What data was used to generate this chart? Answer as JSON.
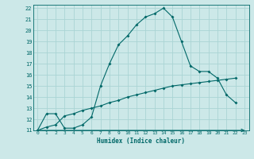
{
  "xlabel": "Humidex (Indice chaleur)",
  "bg_color": "#cce8e8",
  "grid_color": "#aad4d4",
  "line_color": "#006868",
  "xlim": [
    -0.5,
    23.5
  ],
  "ylim": [
    11,
    22.3
  ],
  "xticks": [
    0,
    1,
    2,
    3,
    4,
    5,
    6,
    7,
    8,
    9,
    10,
    11,
    12,
    13,
    14,
    15,
    16,
    17,
    18,
    19,
    20,
    21,
    22,
    23
  ],
  "yticks": [
    11,
    12,
    13,
    14,
    15,
    16,
    17,
    18,
    19,
    20,
    21,
    22
  ],
  "curve1_x": [
    0,
    1,
    2,
    3,
    4,
    5,
    6,
    7,
    8,
    9,
    10,
    11,
    12,
    13,
    14,
    15,
    16,
    17,
    18,
    19,
    20,
    21,
    22
  ],
  "curve1_y": [
    11,
    12.5,
    12.5,
    11.2,
    11.2,
    11.5,
    12.2,
    15.0,
    17.0,
    18.7,
    19.5,
    20.5,
    21.2,
    21.5,
    22.0,
    21.2,
    19.0,
    16.8,
    16.3,
    16.3,
    15.7,
    14.2,
    13.5
  ],
  "curve2_x": [
    0,
    22
  ],
  "curve2_y": [
    11,
    11
  ],
  "curve3_x": [
    0,
    1,
    2,
    3,
    4,
    5,
    6,
    7,
    8,
    9,
    10,
    11,
    12,
    13,
    14,
    15,
    16,
    17,
    18,
    19,
    20,
    21,
    22
  ],
  "curve3_y": [
    11,
    11.3,
    11.5,
    12.3,
    12.5,
    12.8,
    13.0,
    13.2,
    13.5,
    13.7,
    14.0,
    14.2,
    14.4,
    14.6,
    14.8,
    15.0,
    15.1,
    15.2,
    15.3,
    15.4,
    15.5,
    15.6,
    15.7
  ]
}
